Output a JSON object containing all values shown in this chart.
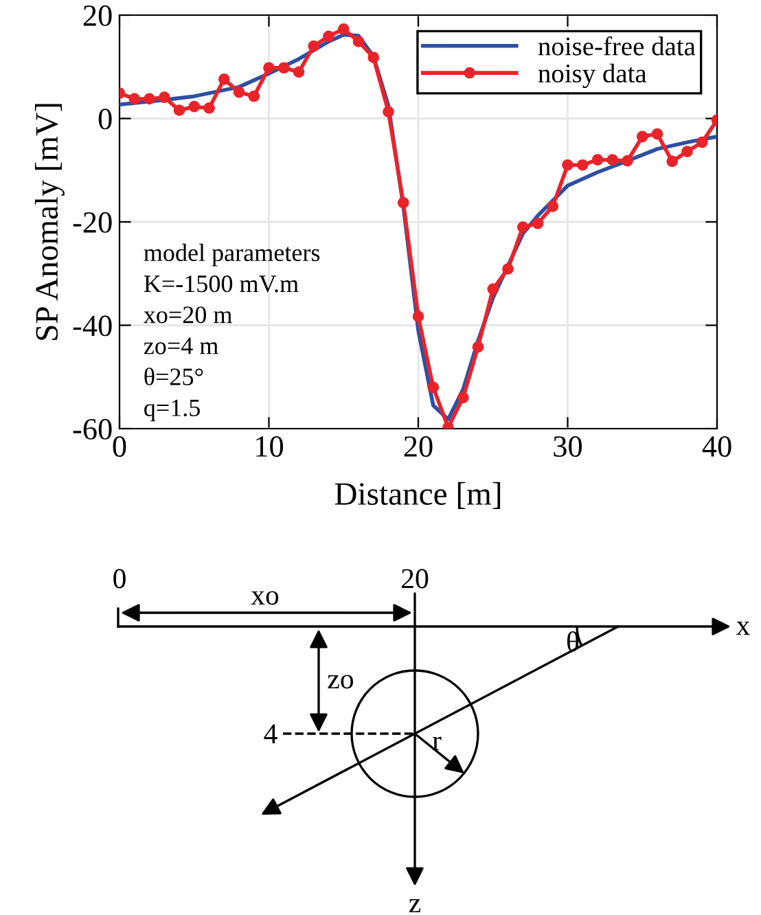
{
  "chart_data": [
    {
      "type": "line",
      "xlabel": "Distance [m]",
      "ylabel": "SP Anomaly [mV]",
      "xlim": [
        0,
        40
      ],
      "ylim": [
        -60,
        20
      ],
      "xticks": [
        0,
        10,
        20,
        30,
        40
      ],
      "yticks": [
        -60,
        -40,
        -20,
        0,
        20
      ],
      "grid": true,
      "legend": "top right",
      "series": [
        {
          "name": "noise-free data",
          "color": "#2e4fa3",
          "marker": "none",
          "x": [
            0,
            3,
            5,
            8,
            10,
            12,
            14,
            15,
            16,
            17,
            18,
            19,
            20,
            21,
            22,
            23,
            24,
            25,
            26,
            27,
            28,
            30,
            32,
            34,
            36,
            38,
            40
          ],
          "values": [
            2.7,
            3.6,
            4.3,
            6.1,
            8.7,
            11.5,
            14.9,
            16.2,
            16.0,
            12.0,
            2.5,
            -17.0,
            -41.0,
            -55.5,
            -58.2,
            -52.4,
            -43.0,
            -34.7,
            -28.5,
            -22.3,
            -18.8,
            -13.0,
            -10.4,
            -8.2,
            -5.9,
            -4.6,
            -3.5
          ]
        },
        {
          "name": "noisy data",
          "color": "#e8242a",
          "marker": "circle",
          "x": [
            0,
            1,
            2,
            3,
            4,
            5,
            6,
            7,
            8,
            9,
            10,
            11,
            12,
            13,
            14,
            15,
            16,
            17,
            18,
            19,
            20,
            21,
            22,
            23,
            24,
            25,
            26,
            27,
            28,
            29,
            30,
            31,
            32,
            33,
            34,
            35,
            36,
            37,
            38,
            39,
            40
          ],
          "values": [
            4.9,
            3.8,
            3.8,
            4.1,
            1.6,
            2.3,
            2.0,
            7.6,
            5.1,
            4.3,
            9.8,
            9.8,
            9.0,
            14.0,
            15.9,
            17.3,
            14.9,
            11.8,
            1.3,
            -16.3,
            -38.3,
            -52.0,
            -59.8,
            -54.0,
            -44.2,
            -33.0,
            -29.1,
            -21.0,
            -20.3,
            -17.0,
            -9.0,
            -9.0,
            -8.0,
            -8.0,
            -8.2,
            -3.5,
            -3.0,
            -8.3,
            -6.4,
            -4.6,
            -0.3
          ]
        }
      ],
      "annotations": [
        "model parameters",
        "K=-1500 mV.m",
        "xo=20 m",
        "zo=4 m",
        "θ=25°",
        "q=1.5"
      ]
    },
    {
      "type": "other",
      "annotations": [
        "0",
        "20",
        "xo",
        "x",
        "θ",
        "zo",
        "4",
        "r",
        "z"
      ]
    }
  ]
}
